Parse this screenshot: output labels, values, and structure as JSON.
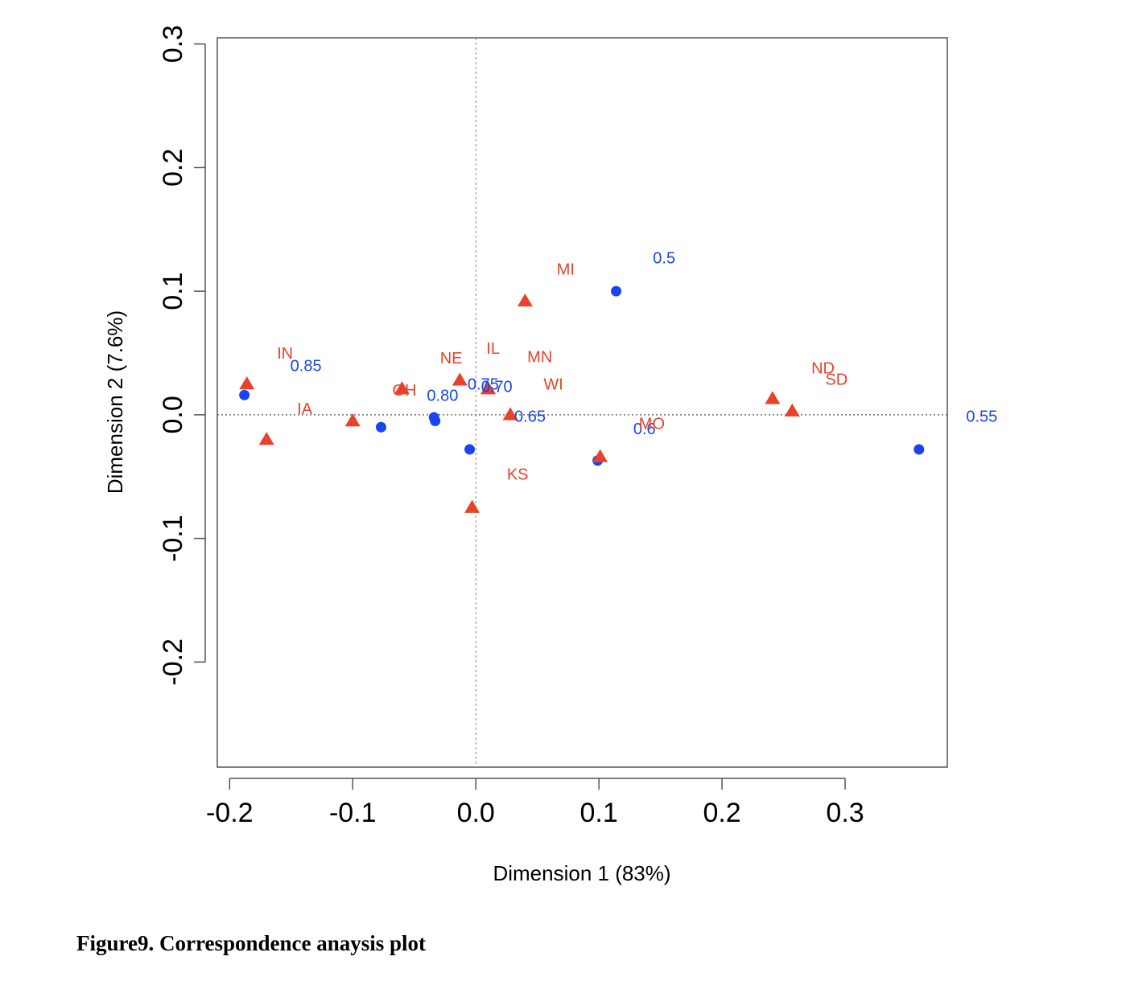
{
  "caption": "Figure9. Correspondence anaysis plot",
  "chart_data": {
    "type": "scatter",
    "title": "",
    "xlabel": "Dimension 1 (83%)",
    "ylabel": "Dimension 2 (7.6%)",
    "xlim": [
      -0.21,
      0.383
    ],
    "ylim": [
      -0.285,
      0.305
    ],
    "x_ticks": [
      "-0.2",
      "-0.1",
      "0.0",
      "0.1",
      "0.2",
      "0.3"
    ],
    "y_ticks": [
      "-0.2",
      "-0.1",
      "0.0",
      "0.1",
      "0.2",
      "0.3"
    ],
    "grid": false,
    "reference_lines": {
      "x": 0,
      "y": 0
    },
    "colors": {
      "columns": "#1a44f0",
      "rows": "#e8432a"
    },
    "series": [
      {
        "marker": "circle",
        "color": "#1a44f0",
        "points": [
          {
            "x": -0.188,
            "y": 0.016,
            "label": "0.85",
            "lx": -0.138,
            "ly": 0.04
          },
          {
            "x": 0.114,
            "y": 0.1,
            "label": "0.5",
            "lx": 0.153,
            "ly": 0.127
          },
          {
            "x": 0.36,
            "y": -0.028,
            "label": "0.55",
            "lx": 0.411,
            "ly": -0.001
          },
          {
            "x": 0.099,
            "y": -0.037,
            "label": "0.6",
            "lx": 0.137,
            "ly": -0.011
          },
          {
            "x": -0.005,
            "y": -0.028,
            "label": "0.65",
            "lx": 0.044,
            "ly": -0.001
          },
          {
            "x": -0.033,
            "y": -0.005,
            "label": "0.70",
            "lx": 0.017,
            "ly": 0.023
          },
          {
            "x": -0.034,
            "y": -0.002,
            "label": "0.75",
            "lx": 0.006,
            "ly": 0.025
          },
          {
            "x": -0.077,
            "y": -0.01,
            "label": "0.80",
            "lx": -0.027,
            "ly": 0.016
          }
        ]
      },
      {
        "marker": "triangle",
        "color": "#e8432a",
        "points": [
          {
            "x": -0.186,
            "y": 0.025,
            "label": "IN",
            "lx": -0.155,
            "ly": 0.05
          },
          {
            "x": -0.17,
            "y": -0.02,
            "label": "IA",
            "lx": -0.139,
            "ly": 0.005
          },
          {
            "x": -0.06,
            "y": 0.021,
            "label": "OH",
            "lx": -0.058,
            "ly": 0.02
          },
          {
            "x": -0.013,
            "y": 0.028,
            "label": "NE",
            "lx": -0.02,
            "ly": 0.046
          },
          {
            "x": 0.01,
            "y": 0.021,
            "label": "IL",
            "lx": 0.014,
            "ly": 0.054
          },
          {
            "x": 0.04,
            "y": 0.092,
            "label": "MI",
            "lx": 0.073,
            "ly": 0.118
          },
          {
            "x": 0.01,
            "y": 0.021,
            "label": "MN",
            "lx": 0.052,
            "ly": 0.047
          },
          {
            "x": 0.028,
            "y": 0.0,
            "label": "WI",
            "lx": 0.063,
            "ly": 0.025
          },
          {
            "x": -0.003,
            "y": -0.075,
            "label": "KS",
            "lx": 0.034,
            "ly": -0.048
          },
          {
            "x": -0.1,
            "y": -0.005,
            "label": "MO",
            "lx": 0.143,
            "ly": -0.007
          },
          {
            "x": 0.101,
            "y": -0.034,
            "label": "ND",
            "lx": 0.282,
            "ly": 0.038
          },
          {
            "x": 0.241,
            "y": 0.013,
            "label": "SD",
            "lx": 0.293,
            "ly": 0.029
          },
          {
            "x": 0.257,
            "y": 0.003,
            "label": "",
            "lx": 0,
            "ly": 0
          }
        ]
      }
    ]
  }
}
